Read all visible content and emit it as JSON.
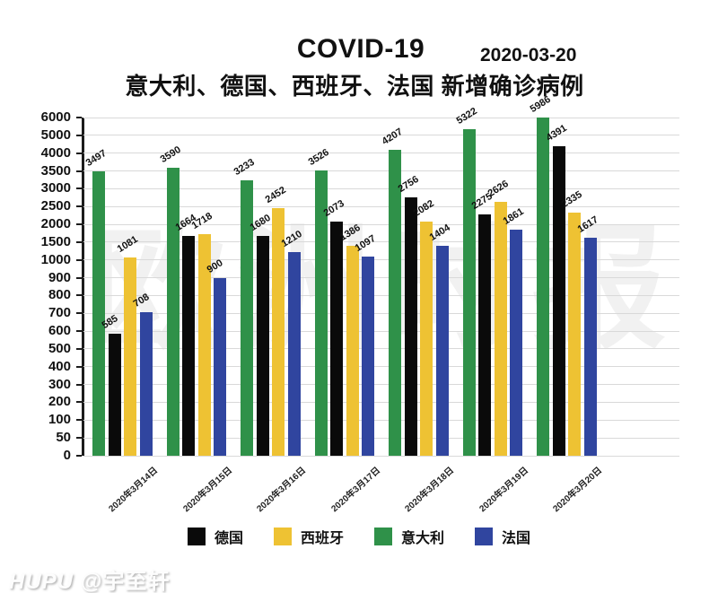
{
  "header": {
    "title": "COVID-19",
    "date": "2020-03-20",
    "subtitle": "意大利、德国、西班牙、法国 新增确诊病例"
  },
  "chart_data": {
    "type": "bar",
    "title": "COVID-19 意大利、德国、西班牙、法国 新增确诊病例",
    "categories": [
      "2020年3月14日",
      "2020年3月15日",
      "2020年3月16日",
      "2020年3月17日",
      "2020年3月18日",
      "2020年3月19日",
      "2020年3月20日"
    ],
    "series": [
      {
        "name": "意大利",
        "color": "#2f9149",
        "values": [
          3497,
          3590,
          3233,
          3526,
          4207,
          5322,
          5986
        ]
      },
      {
        "name": "德国",
        "color": "#0a0a0a",
        "values": [
          585,
          1664,
          1680,
          2073,
          2756,
          2275,
          4391
        ]
      },
      {
        "name": "西班牙",
        "color": "#eec233",
        "values": [
          1081,
          1718,
          2452,
          1386,
          2082,
          2626,
          2335
        ]
      },
      {
        "name": "法国",
        "color": "#30459f",
        "values": [
          708,
          900,
          1210,
          1097,
          1404,
          1861,
          1617
        ]
      }
    ],
    "y_ticks": [
      0,
      50,
      100,
      200,
      300,
      400,
      500,
      600,
      700,
      800,
      900,
      1000,
      1500,
      2000,
      2500,
      3000,
      3500,
      4000,
      5000,
      6000
    ],
    "scale": "piecewise-equal-tick-spacing",
    "grid": true,
    "ylim": [
      0,
      6000
    ],
    "legend_position": "bottom",
    "bar_value_labels": true
  },
  "legend": {
    "items": [
      {
        "label": "德国",
        "color": "#0a0a0a"
      },
      {
        "label": "西班牙",
        "color": "#eec233"
      },
      {
        "label": "意大利",
        "color": "#2f9149"
      },
      {
        "label": "法国",
        "color": "#30459f"
      }
    ]
  },
  "watermarks": {
    "plot": "欧洲时报",
    "footer_brand": "HUPU",
    "footer_handle": "@宇至轩"
  }
}
